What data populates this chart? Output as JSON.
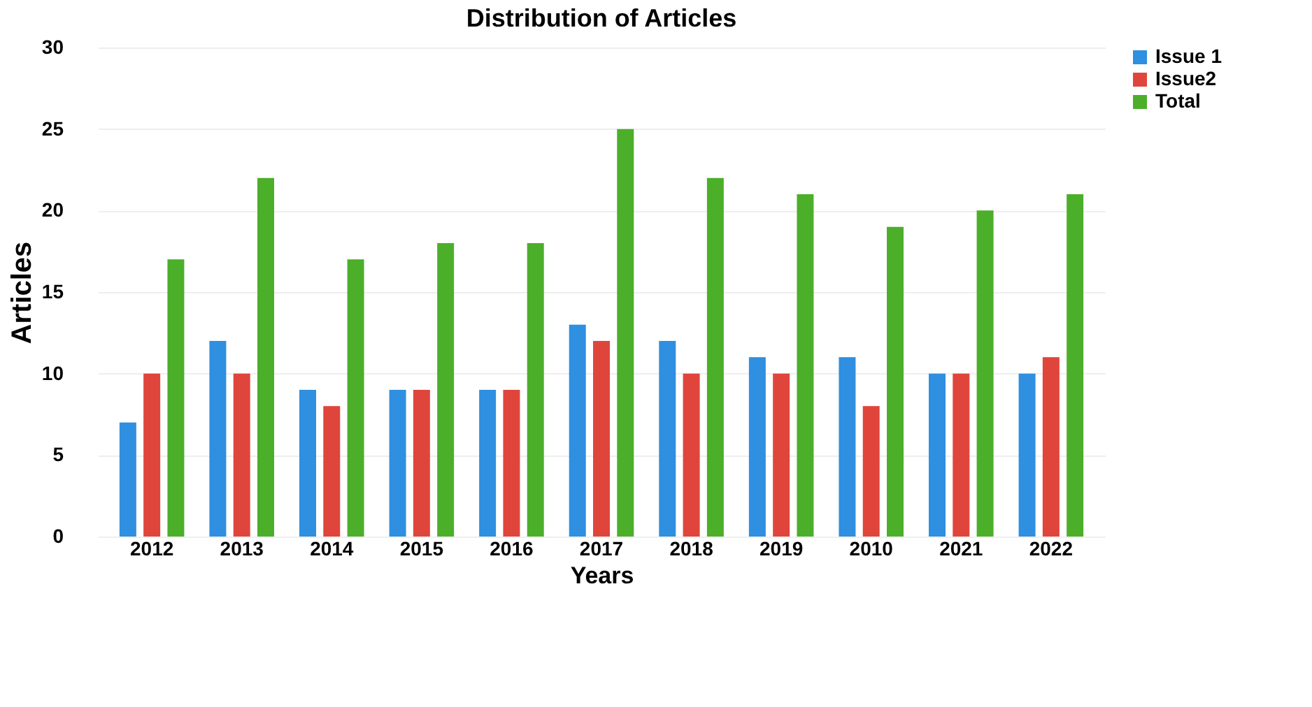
{
  "chart_data": {
    "type": "bar",
    "title": "Distribution of Articles",
    "xlabel": "Years",
    "ylabel": "Articles",
    "categories": [
      "2012",
      "2013",
      "2014",
      "2015",
      "2016",
      "2017",
      "2018",
      "2019",
      "2010",
      "2021",
      "2022"
    ],
    "series": [
      {
        "name": "Issue 1",
        "color": "#2f8fe0",
        "values": [
          7,
          12,
          9,
          9,
          9,
          13,
          12,
          11,
          11,
          10,
          10
        ]
      },
      {
        "name": "Issue2",
        "color": "#e0453c",
        "values": [
          10,
          10,
          8,
          9,
          9,
          12,
          10,
          10,
          8,
          10,
          11
        ]
      },
      {
        "name": "Total",
        "color": "#4caf2a",
        "values": [
          17,
          22,
          17,
          18,
          18,
          25,
          22,
          21,
          19,
          20,
          21
        ]
      }
    ],
    "ylim": [
      0,
      30
    ],
    "yticks": [
      0,
      5,
      10,
      15,
      20,
      25,
      30
    ],
    "grid": "y",
    "legend": "right"
  }
}
